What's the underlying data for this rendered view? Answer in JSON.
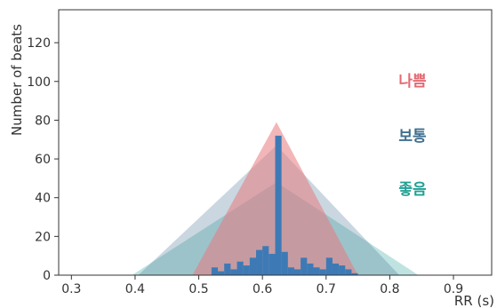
{
  "chart_data": {
    "type": "bar",
    "xlabel": "RR (s)",
    "ylabel": "Number of beats",
    "xlim": [
      0.28,
      0.96
    ],
    "ylim": [
      0,
      137
    ],
    "x_ticks": [
      0.3,
      0.4,
      0.5,
      0.6,
      0.7,
      0.8,
      0.9
    ],
    "x_tick_labels": [
      "0.3",
      "0.4",
      "0.5",
      "0.6",
      "0.7",
      "0.8",
      "0.9"
    ],
    "y_ticks": [
      0,
      20,
      40,
      60,
      80,
      100,
      120
    ],
    "y_tick_labels": [
      "0",
      "20",
      "40",
      "60",
      "80",
      "100",
      "120"
    ],
    "grid": false,
    "legend_placement": "right",
    "colors": {
      "bad": "#e87a80",
      "normal": "#3f6f8f",
      "good": "#2aa39a",
      "bars": "#3d7ab5",
      "axis": "#333333"
    },
    "series": [
      {
        "name": "나쁨",
        "kind": "triangle",
        "color": "#e87a80",
        "opacity": 0.55,
        "x": [
          0.49,
          0.622,
          0.75
        ],
        "y": [
          0,
          79,
          0
        ]
      },
      {
        "name": "보통",
        "kind": "triangle",
        "color": "#3f6f8f",
        "opacity": 0.28,
        "x": [
          0.405,
          0.622,
          0.815
        ],
        "y": [
          0,
          67,
          0
        ]
      },
      {
        "name": "좋음",
        "kind": "triangle",
        "color": "#2aa39a",
        "opacity": 0.3,
        "x": [
          0.395,
          0.622,
          0.845
        ],
        "y": [
          0,
          48,
          0
        ]
      }
    ],
    "histogram": {
      "color": "#3d7ab5",
      "bin_width": 0.01,
      "bin_starts": [
        0.52,
        0.53,
        0.54,
        0.55,
        0.56,
        0.57,
        0.58,
        0.59,
        0.6,
        0.61,
        0.62,
        0.63,
        0.64,
        0.65,
        0.66,
        0.67,
        0.68,
        0.69,
        0.7,
        0.71,
        0.72,
        0.73,
        0.74
      ],
      "values": [
        4,
        2,
        6,
        3,
        7,
        5,
        9,
        13,
        15,
        11,
        72,
        12,
        4,
        3,
        9,
        6,
        4,
        3,
        9,
        6,
        5,
        3,
        1
      ]
    }
  }
}
